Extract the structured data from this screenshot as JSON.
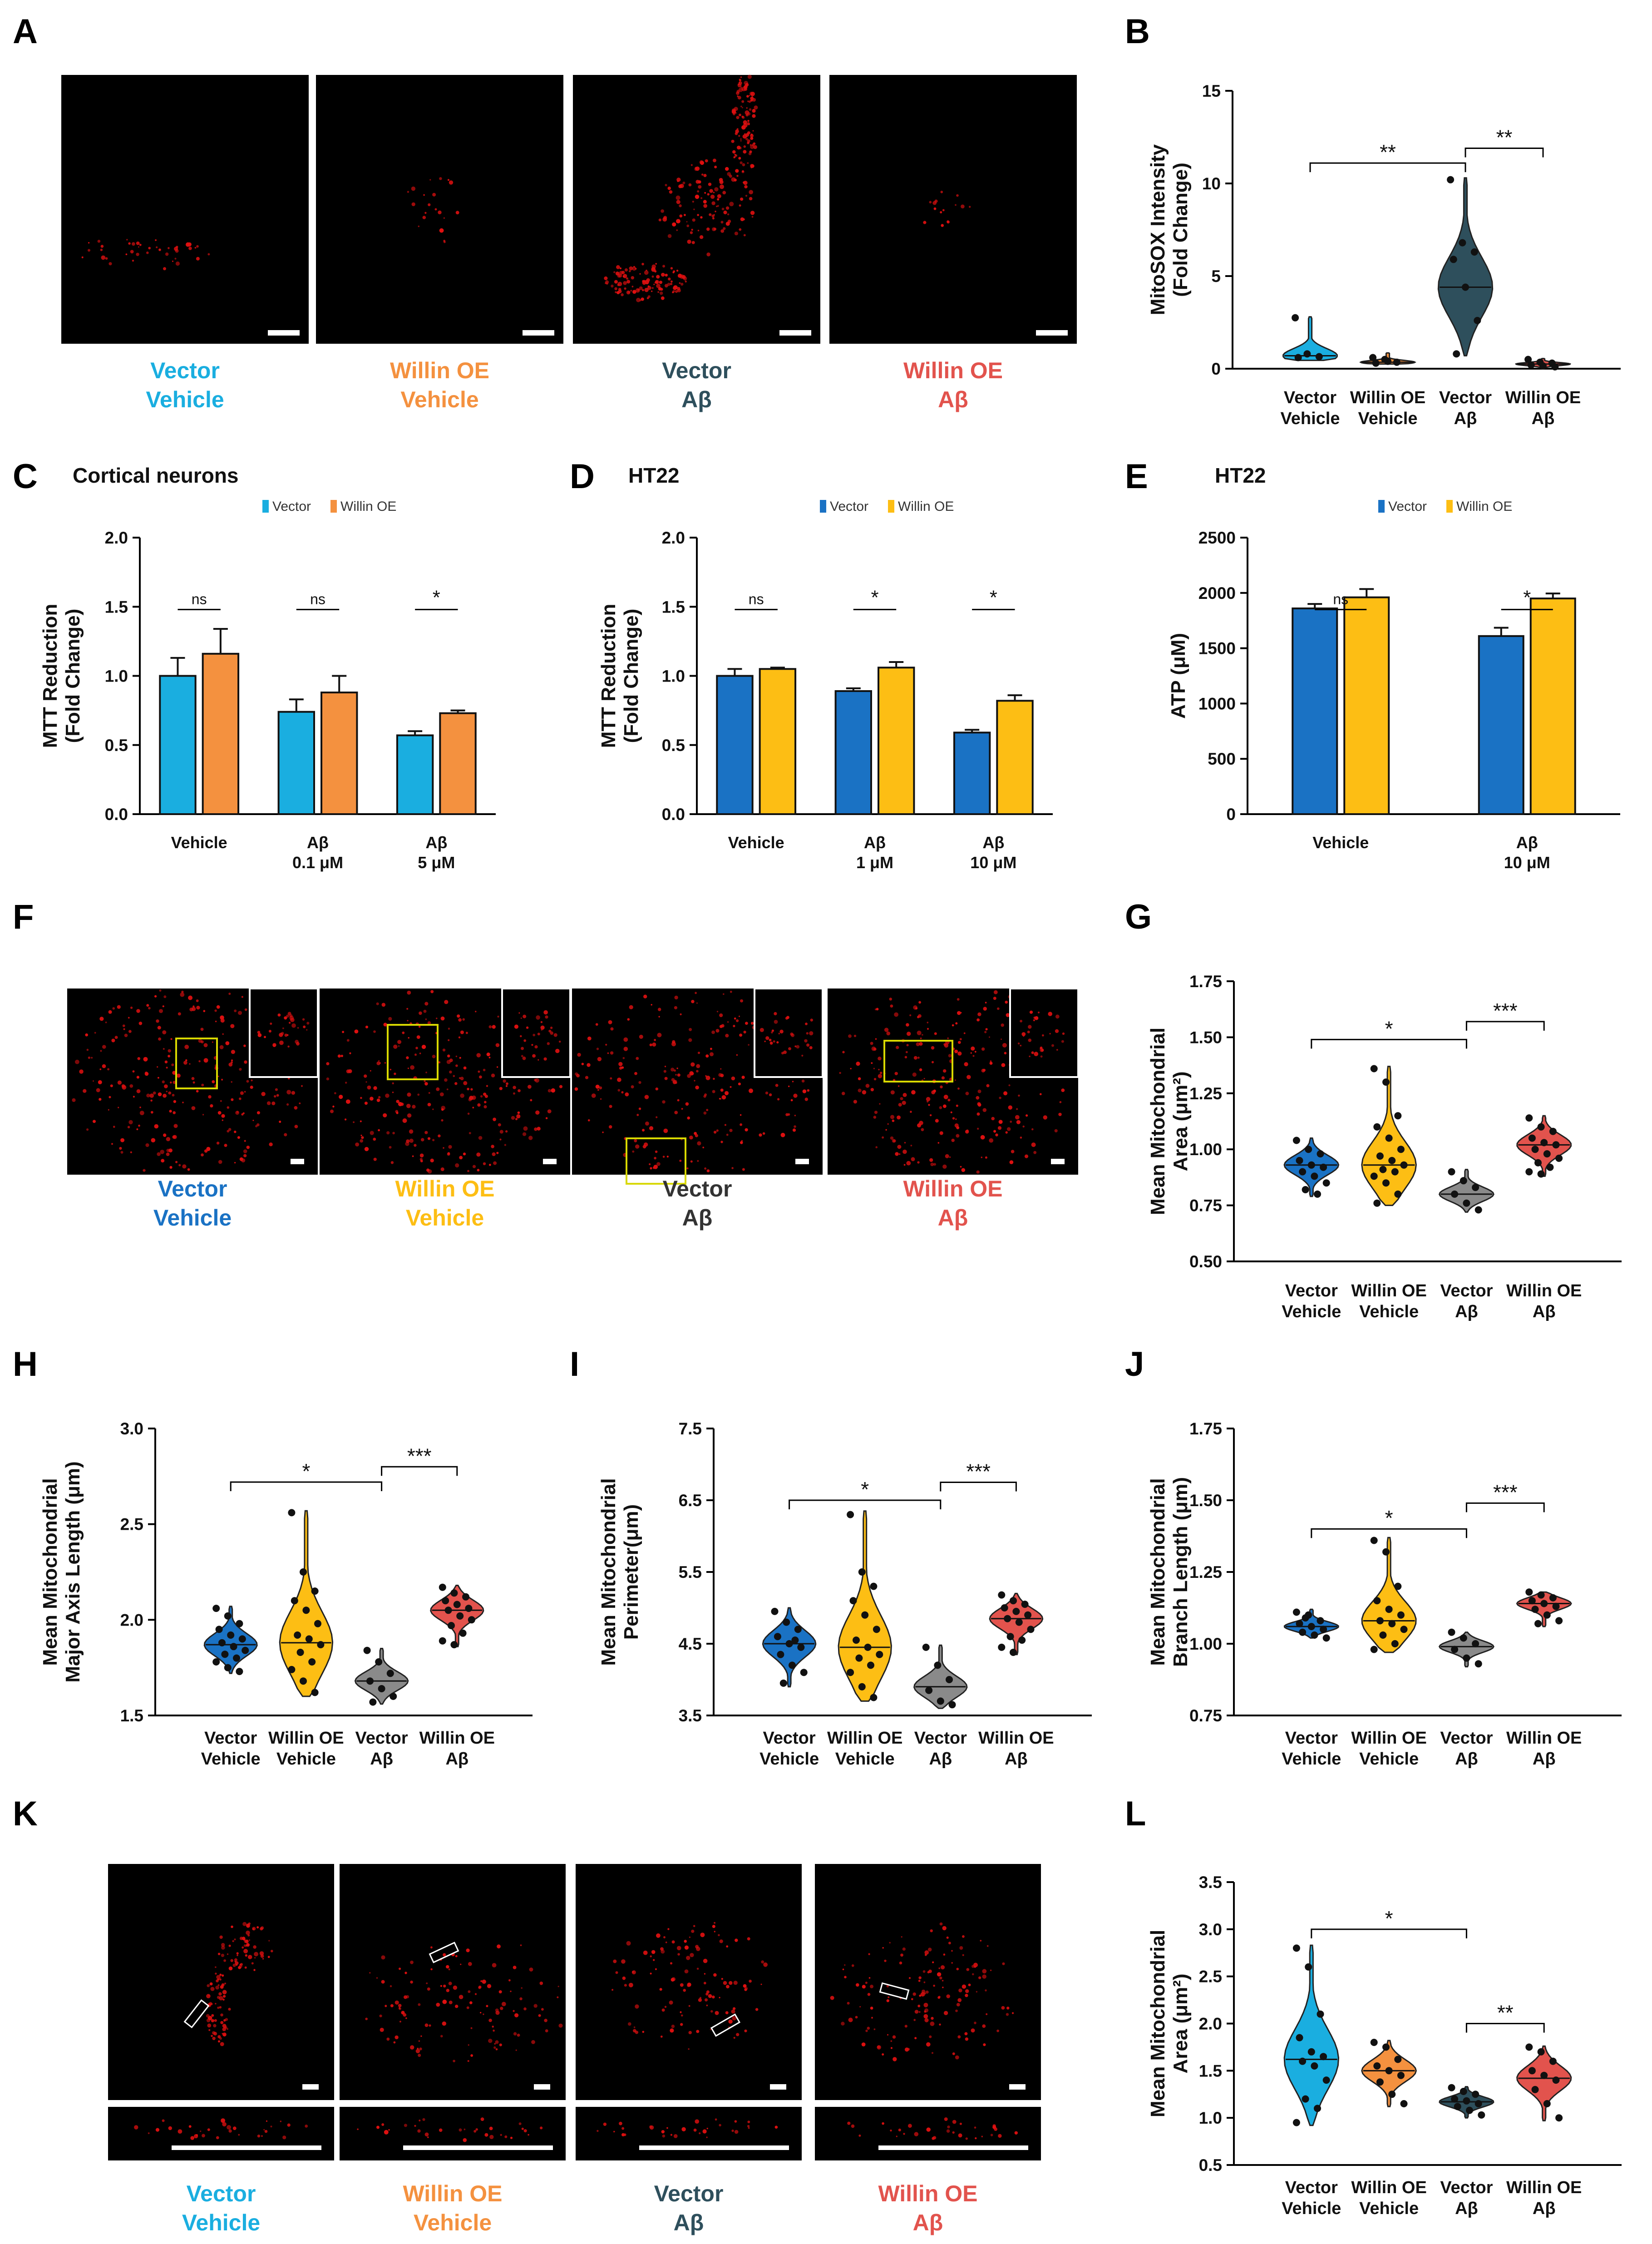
{
  "figure": {
    "panel_letters": [
      "A",
      "B",
      "C",
      "D",
      "E",
      "F",
      "G",
      "H",
      "I",
      "J",
      "K",
      "L"
    ],
    "colors": {
      "vector_cyan": "#1aaee0",
      "willin_orange": "#f4913f",
      "vector_slate": "#2e4f5c",
      "willin_red": "#e2534d",
      "vector_blue": "#1a72c4",
      "willin_yellow": "#fdbe14",
      "vector_grey": "#8a8a8a",
      "micro_red": "#e01010",
      "inset_yellow": "#d8d800"
    }
  },
  "image_panels": {
    "A": {
      "captions": [
        {
          "line1": "Vector",
          "line2": "Vehicle",
          "color": "#1aaee0"
        },
        {
          "line1": "Willin OE",
          "line2": "Vehicle",
          "color": "#f4913f"
        },
        {
          "line1": "Vector",
          "line2": "Aβ",
          "color": "#2e4f5c"
        },
        {
          "line1": "Willin OE",
          "line2": "Aβ",
          "color": "#e2534d"
        }
      ]
    },
    "F": {
      "captions": [
        {
          "line1": "Vector",
          "line2": "Vehicle",
          "color": "#1a72c4"
        },
        {
          "line1": "Willin OE",
          "line2": "Vehicle",
          "color": "#fdbe14"
        },
        {
          "line1": "Vector",
          "line2": "Aβ",
          "color": "#333333"
        },
        {
          "line1": "Willin OE",
          "line2": "Aβ",
          "color": "#e2534d"
        }
      ]
    },
    "K": {
      "captions": [
        {
          "line1": "Vector",
          "line2": "Vehicle",
          "color": "#1aaee0"
        },
        {
          "line1": "Willin OE",
          "line2": "Vehicle",
          "color": "#f4913f"
        },
        {
          "line1": "Vector",
          "line2": "Aβ",
          "color": "#2e4f5c"
        },
        {
          "line1": "Willin OE",
          "line2": "Aβ",
          "color": "#e2534d"
        }
      ]
    }
  },
  "chart_data": [
    {
      "panel": "B",
      "type": "violin",
      "ylabel_lines": [
        "MitoSOX Intensity",
        "(Fold Change)"
      ],
      "ylim": [
        0,
        15
      ],
      "yticks": [
        "0",
        "5",
        "10",
        "15"
      ],
      "categories": [
        [
          "Vector",
          "Vehicle"
        ],
        [
          "Willin OE",
          "Vehicle"
        ],
        [
          "Vector",
          "Aβ"
        ],
        [
          "Willin OE",
          "Aβ"
        ]
      ],
      "colors": [
        "#1aaee0",
        "#f4913f",
        "#2e4f5c",
        "#e2534d"
      ],
      "violins": [
        {
          "min": 0.45,
          "max": 2.8,
          "median": 0.7,
          "points": [
            2.75,
            0.8,
            0.65,
            0.6
          ]
        },
        {
          "min": 0.25,
          "max": 0.85,
          "median": 0.35,
          "points": [
            0.6,
            0.5,
            0.35,
            0.3,
            0.4
          ]
        },
        {
          "min": 0.7,
          "max": 10.3,
          "median": 4.4,
          "points": [
            10.2,
            6.8,
            6.3,
            5.9,
            4.4,
            2.6,
            0.8
          ]
        },
        {
          "min": 0.05,
          "max": 0.55,
          "median": 0.25,
          "points": [
            0.5,
            0.35,
            0.3,
            0.2,
            0.15,
            0.1
          ]
        }
      ],
      "significance": [
        {
          "from": 0,
          "to": 2,
          "label": "**",
          "y": 11.1
        },
        {
          "from": 2,
          "to": 3,
          "label": "**",
          "y": 11.9
        }
      ]
    },
    {
      "panel": "C",
      "type": "bar",
      "title": "Cortical neurons",
      "legend": [
        "Vector",
        "Willin OE"
      ],
      "ylabel_lines": [
        "MTT Reduction",
        "(Fold Change)"
      ],
      "ylim": [
        0,
        2.0
      ],
      "yticks": [
        "0.0",
        "0.5",
        "1.0",
        "1.5",
        "2.0"
      ],
      "groups": [
        [
          "Vehicle"
        ],
        [
          "Aβ",
          "0.1 μM"
        ],
        [
          "Aβ",
          "5 μM"
        ]
      ],
      "colors": [
        "#1aaee0",
        "#f4913f"
      ],
      "series": [
        {
          "name": "Vector",
          "values": [
            1.0,
            0.74,
            0.57
          ],
          "errors": [
            0.13,
            0.09,
            0.03
          ]
        },
        {
          "name": "Willin OE",
          "values": [
            1.16,
            0.88,
            0.73
          ],
          "errors": [
            0.18,
            0.12,
            0.02
          ]
        }
      ],
      "significance": [
        "ns",
        "ns",
        "*"
      ]
    },
    {
      "panel": "D",
      "type": "bar",
      "title": "HT22",
      "legend": [
        "Vector",
        "Willin OE"
      ],
      "ylabel_lines": [
        "MTT Reduction",
        "(Fold Change)"
      ],
      "ylim": [
        0,
        2.0
      ],
      "yticks": [
        "0.0",
        "0.5",
        "1.0",
        "1.5",
        "2.0"
      ],
      "groups": [
        [
          "Vehicle"
        ],
        [
          "Aβ",
          "1 μM"
        ],
        [
          "Aβ",
          "10 μM"
        ]
      ],
      "colors": [
        "#1a72c4",
        "#fdbe14"
      ],
      "series": [
        {
          "name": "Vector",
          "values": [
            1.0,
            0.89,
            0.59
          ],
          "errors": [
            0.05,
            0.02,
            0.02
          ]
        },
        {
          "name": "Willin OE",
          "values": [
            1.05,
            1.06,
            0.82
          ],
          "errors": [
            0.01,
            0.04,
            0.04
          ]
        }
      ],
      "significance": [
        "ns",
        "*",
        "*"
      ]
    },
    {
      "panel": "E",
      "type": "bar",
      "title": "HT22",
      "legend": [
        "Vector",
        "Willin OE"
      ],
      "ylabel_lines": [
        "ATP (μM)"
      ],
      "ylim": [
        0,
        2500
      ],
      "yticks": [
        "0",
        "500",
        "1000",
        "1500",
        "2000",
        "2500"
      ],
      "groups": [
        [
          "Vehicle"
        ],
        [
          "Aβ",
          "10 μM"
        ]
      ],
      "colors": [
        "#1a72c4",
        "#fdbe14"
      ],
      "series": [
        {
          "name": "Vector",
          "values": [
            1860,
            1610
          ],
          "errors": [
            40,
            75
          ]
        },
        {
          "name": "Willin OE",
          "values": [
            1960,
            1950
          ],
          "errors": [
            75,
            45
          ]
        }
      ],
      "significance": [
        "ns",
        "*"
      ]
    },
    {
      "panel": "G",
      "type": "violin",
      "ylabel_lines": [
        "Mean Mitochondrial",
        "Area (μm²)"
      ],
      "ylim": [
        0.5,
        1.75
      ],
      "yticks": [
        "0.50",
        "0.75",
        "1.00",
        "1.25",
        "1.50",
        "1.75"
      ],
      "categories": [
        [
          "Vector",
          "Vehicle"
        ],
        [
          "Willin OE",
          "Vehicle"
        ],
        [
          "Vector",
          "Aβ"
        ],
        [
          "Willin OE",
          "Aβ"
        ]
      ],
      "colors": [
        "#1a72c4",
        "#fdbe14",
        "#8a8a8a",
        "#e2534d"
      ],
      "violins": [
        {
          "min": 0.79,
          "max": 1.05,
          "median": 0.93,
          "points": [
            1.04,
            1.0,
            0.98,
            0.95,
            0.93,
            0.92,
            0.9,
            0.88,
            0.85,
            0.82,
            0.8
          ]
        },
        {
          "min": 0.75,
          "max": 1.37,
          "median": 0.93,
          "points": [
            1.36,
            1.3,
            1.15,
            1.1,
            1.05,
            1.0,
            0.97,
            0.95,
            0.93,
            0.91,
            0.9,
            0.88,
            0.85,
            0.8,
            0.76
          ]
        },
        {
          "min": 0.72,
          "max": 0.91,
          "median": 0.8,
          "points": [
            0.9,
            0.86,
            0.83,
            0.8,
            0.76,
            0.73
          ]
        },
        {
          "min": 0.88,
          "max": 1.15,
          "median": 1.02,
          "points": [
            1.14,
            1.1,
            1.08,
            1.05,
            1.03,
            1.02,
            1.0,
            0.98,
            0.96,
            0.94,
            0.92,
            0.9,
            0.89
          ]
        }
      ],
      "significance": [
        {
          "from": 0,
          "to": 2,
          "label": "*",
          "y": 1.49
        },
        {
          "from": 2,
          "to": 3,
          "label": "***",
          "y": 1.57
        }
      ]
    },
    {
      "panel": "H",
      "type": "violin",
      "ylabel_lines": [
        "Mean Mitochondrial",
        "Major Axis Length (μm)"
      ],
      "ylim": [
        1.5,
        3.0
      ],
      "yticks": [
        "1.5",
        "2.0",
        "2.5",
        "3.0"
      ],
      "categories": [
        [
          "Vector",
          "Vehicle"
        ],
        [
          "Willin OE",
          "Vehicle"
        ],
        [
          "Vector",
          "Aβ"
        ],
        [
          "Willin OE",
          "Aβ"
        ]
      ],
      "colors": [
        "#1a72c4",
        "#fdbe14",
        "#8a8a8a",
        "#e2534d"
      ],
      "violins": [
        {
          "min": 1.72,
          "max": 2.07,
          "median": 1.87,
          "points": [
            2.06,
            2.02,
            1.98,
            1.95,
            1.92,
            1.9,
            1.88,
            1.86,
            1.84,
            1.82,
            1.8,
            1.78,
            1.75,
            1.73
          ]
        },
        {
          "min": 1.6,
          "max": 2.57,
          "median": 1.88,
          "points": [
            2.56,
            2.25,
            2.15,
            2.1,
            2.05,
            1.98,
            1.92,
            1.9,
            1.87,
            1.83,
            1.78,
            1.74,
            1.68,
            1.62
          ]
        },
        {
          "min": 1.56,
          "max": 1.85,
          "median": 1.68,
          "points": [
            1.84,
            1.78,
            1.72,
            1.68,
            1.64,
            1.6,
            1.57
          ]
        },
        {
          "min": 1.86,
          "max": 2.18,
          "median": 2.05,
          "points": [
            2.17,
            2.14,
            2.12,
            2.1,
            2.08,
            2.06,
            2.05,
            2.02,
            2.0,
            1.97,
            1.93,
            1.89,
            1.87
          ]
        }
      ],
      "significance": [
        {
          "from": 0,
          "to": 2,
          "label": "*",
          "y": 2.72
        },
        {
          "from": 2,
          "to": 3,
          "label": "***",
          "y": 2.8
        }
      ]
    },
    {
      "panel": "I",
      "type": "violin",
      "ylabel_lines": [
        "Mean Mitochondrial",
        "Perimeter(μm)"
      ],
      "ylim": [
        3.5,
        7.5
      ],
      "yticks": [
        "3.5",
        "4.5",
        "5.5",
        "6.5",
        "7.5"
      ],
      "categories": [
        [
          "Vector",
          "Vehicle"
        ],
        [
          "Willin OE",
          "Vehicle"
        ],
        [
          "Vector",
          "Aβ"
        ],
        [
          "Willin OE",
          "Aβ"
        ]
      ],
      "colors": [
        "#1a72c4",
        "#fdbe14",
        "#8a8a8a",
        "#e2534d"
      ],
      "violins": [
        {
          "min": 3.9,
          "max": 5.0,
          "median": 4.5,
          "points": [
            4.95,
            4.8,
            4.7,
            4.6,
            4.5,
            4.45,
            4.35,
            4.2,
            4.1,
            3.95,
            4.55
          ]
        },
        {
          "min": 3.7,
          "max": 6.35,
          "median": 4.45,
          "points": [
            6.3,
            5.5,
            5.3,
            5.1,
            4.9,
            4.7,
            4.55,
            4.45,
            4.35,
            4.3,
            4.2,
            4.1,
            3.9,
            3.75
          ]
        },
        {
          "min": 3.6,
          "max": 4.48,
          "median": 3.9,
          "points": [
            4.45,
            4.2,
            4.0,
            3.85,
            3.7,
            3.65
          ]
        },
        {
          "min": 4.35,
          "max": 5.2,
          "median": 4.85,
          "points": [
            5.18,
            5.1,
            5.05,
            5.0,
            4.95,
            4.9,
            4.85,
            4.8,
            4.7,
            4.6,
            4.55,
            4.45,
            4.38
          ]
        }
      ],
      "significance": [
        {
          "from": 0,
          "to": 2,
          "label": "*",
          "y": 6.5
        },
        {
          "from": 2,
          "to": 3,
          "label": "***",
          "y": 6.75
        }
      ]
    },
    {
      "panel": "J",
      "type": "violin",
      "ylabel_lines": [
        "Mean Mitochondrial",
        "Branch Length (μm)"
      ],
      "ylim": [
        0.75,
        1.75
      ],
      "yticks": [
        "0.75",
        "1.00",
        "1.25",
        "1.50",
        "1.75"
      ],
      "categories": [
        [
          "Vector",
          "Vehicle"
        ],
        [
          "Willin OE",
          "Vehicle"
        ],
        [
          "Vector",
          "Aβ"
        ],
        [
          "Willin OE",
          "Aβ"
        ]
      ],
      "colors": [
        "#1a72c4",
        "#fdbe14",
        "#8a8a8a",
        "#e2534d"
      ],
      "violins": [
        {
          "min": 1.02,
          "max": 1.12,
          "median": 1.06,
          "points": [
            1.11,
            1.1,
            1.08,
            1.07,
            1.06,
            1.05,
            1.04,
            1.03,
            1.02,
            1.09
          ]
        },
        {
          "min": 0.97,
          "max": 1.37,
          "median": 1.08,
          "points": [
            1.36,
            1.32,
            1.2,
            1.15,
            1.12,
            1.1,
            1.08,
            1.07,
            1.05,
            1.03,
            1.0,
            0.98
          ]
        },
        {
          "min": 0.92,
          "max": 1.04,
          "median": 0.99,
          "points": [
            1.04,
            1.02,
            1.0,
            0.98,
            0.95,
            0.93
          ]
        },
        {
          "min": 1.06,
          "max": 1.18,
          "median": 1.14,
          "points": [
            1.18,
            1.17,
            1.16,
            1.15,
            1.14,
            1.13,
            1.12,
            1.1,
            1.08,
            1.07
          ]
        }
      ],
      "significance": [
        {
          "from": 0,
          "to": 2,
          "label": "*",
          "y": 1.4
        },
        {
          "from": 2,
          "to": 3,
          "label": "***",
          "y": 1.49
        }
      ]
    },
    {
      "panel": "L",
      "type": "violin",
      "ylabel_lines": [
        "Mean Mitochondrial",
        "Area (μm²)"
      ],
      "ylim": [
        0.5,
        3.5
      ],
      "yticks": [
        "0.5",
        "1.0",
        "1.5",
        "2.0",
        "2.5",
        "3.0",
        "3.5"
      ],
      "categories": [
        [
          "Vector",
          "Vehicle"
        ],
        [
          "Willin OE",
          "Vehicle"
        ],
        [
          "Vector",
          "Aβ"
        ],
        [
          "Willin OE",
          "Aβ"
        ]
      ],
      "colors": [
        "#1aaee0",
        "#f4913f",
        "#2e4f5c",
        "#e2534d"
      ],
      "violins": [
        {
          "min": 0.92,
          "max": 2.83,
          "median": 1.62,
          "points": [
            2.8,
            2.6,
            2.1,
            1.85,
            1.7,
            1.65,
            1.6,
            1.55,
            1.4,
            1.2,
            1.1,
            0.95
          ]
        },
        {
          "min": 1.12,
          "max": 1.82,
          "median": 1.5,
          "points": [
            1.8,
            1.75,
            1.62,
            1.55,
            1.5,
            1.45,
            1.38,
            1.25,
            1.15
          ]
        },
        {
          "min": 1.0,
          "max": 1.33,
          "median": 1.17,
          "points": [
            1.32,
            1.28,
            1.25,
            1.2,
            1.18,
            1.15,
            1.12,
            1.08,
            1.03
          ]
        },
        {
          "min": 0.97,
          "max": 1.76,
          "median": 1.42,
          "points": [
            1.75,
            1.7,
            1.6,
            1.5,
            1.45,
            1.4,
            1.3,
            1.15,
            1.0
          ]
        }
      ],
      "significance": [
        {
          "from": 0,
          "to": 2,
          "label": "*",
          "y": 3.0
        },
        {
          "from": 2,
          "to": 3,
          "label": "**",
          "y": 2.0
        }
      ]
    }
  ]
}
